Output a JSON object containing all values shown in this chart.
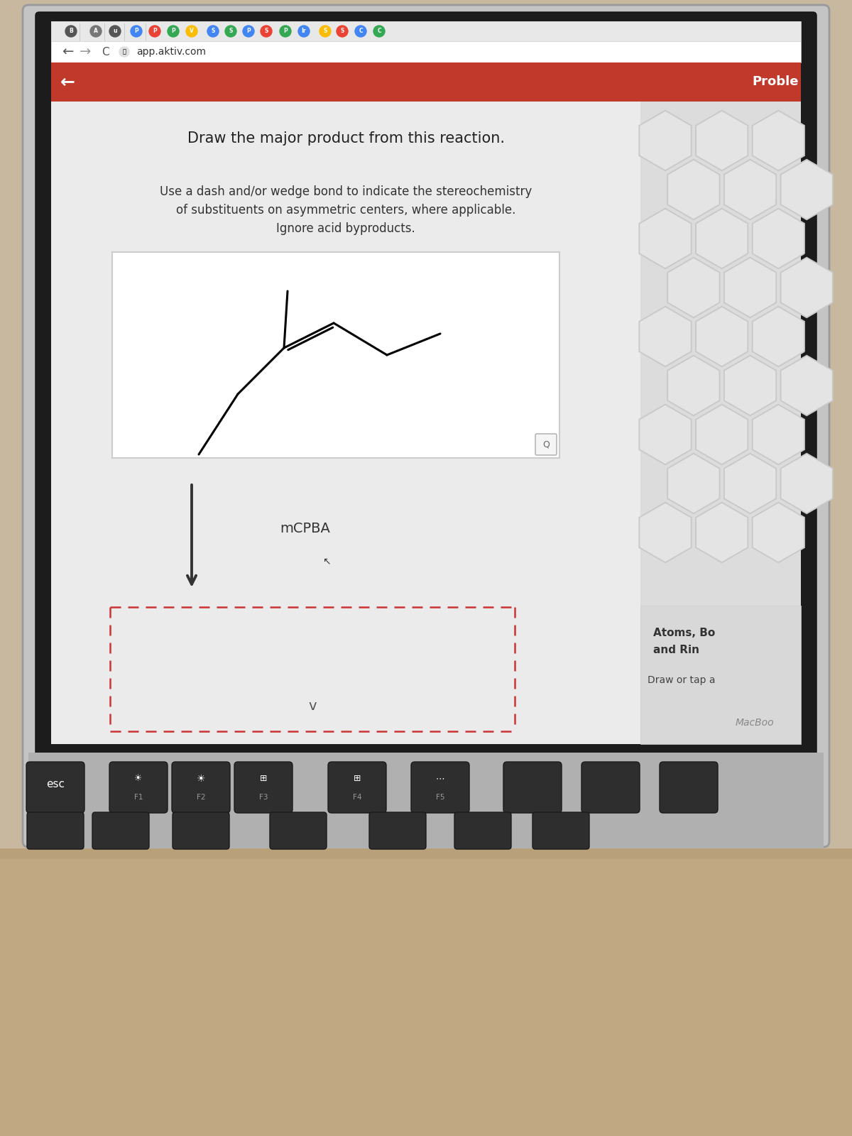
{
  "desk_color": "#c8b8a0",
  "laptop_body_color": "#c8c8c8",
  "laptop_bezel_color": "#1a1a1a",
  "screen_bg": "#f0f0f0",
  "browser_toolbar_bg": "#f1f3f4",
  "browser_tabs_bg": "#e0e0e0",
  "browser_url": "app.aktiv.com",
  "header_color": "#c0392b",
  "header_text": "Proble\nm",
  "back_arrow": "←",
  "content_bg": "#ebebeb",
  "title_text": "Draw the major product from this reaction.",
  "subtitle_lines": [
    "Use a dash and/or wedge bond to indicate the stereochemistry",
    "of substituents on asymmetric centers, where applicable.",
    "Ignore acid byproducts."
  ],
  "reagent_label": "mCPBA",
  "answer_box_border_color": "#cc3333",
  "right_panel_bg": "#dcdcdc",
  "hexagon_face": "#e4e4e4",
  "hexagon_edge": "#c8c8c8",
  "right_bottom_bg": "#d0d0d0",
  "right_panel_text1": "Atoms, Bo",
  "right_panel_text2": "and Rin",
  "right_panel_text3": "Draw or tap a",
  "macbook_text": "MacBoo",
  "keyboard_bg": "#aaaaaa",
  "key_bg": "#2e2e2e",
  "key_text_color": "#ffffff",
  "key_subtext_color": "#999999",
  "keyboard_keys": [
    "esc",
    "F1",
    "F2",
    "F3",
    "F4",
    "F5"
  ],
  "tab_letters": [
    "B",
    "A",
    "u",
    "P",
    "P",
    "P",
    "V",
    "S",
    "S",
    "P",
    "S",
    "P",
    "Ir",
    "S",
    "S",
    "C",
    "C"
  ],
  "tab_colors": [
    "#3a3a3a",
    "#555555",
    "#3a3a3a",
    "#777777",
    "#4285f4",
    "#ea4335",
    "#34a853",
    "#fbbc05",
    "#4285f4",
    "#34a853",
    "#4285f4",
    "#ea4335",
    "#34a853",
    "#4285f4",
    "#fbbc05",
    "#34a853",
    "#4285f4"
  ],
  "cursor_icon_text": "✓",
  "chevron_down": "∨",
  "mol_box_bg": "#ffffff",
  "mol_box_border": "#cccccc"
}
